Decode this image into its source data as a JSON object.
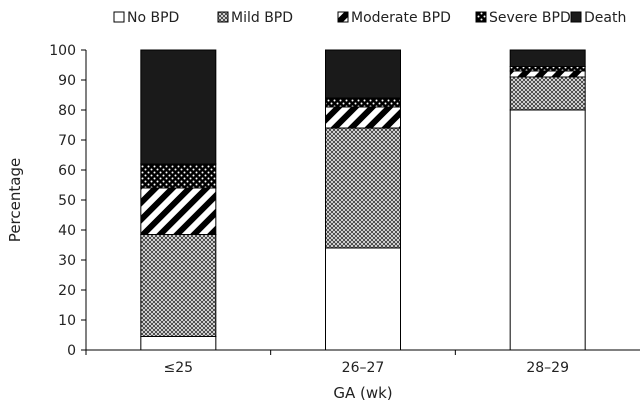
{
  "chart_data": {
    "type": "bar",
    "stacked": true,
    "title": "",
    "xlabel": "GA (wk)",
    "ylabel": "Percentage",
    "ylim": [
      0,
      100
    ],
    "yticks": [
      0,
      10,
      20,
      30,
      40,
      50,
      60,
      70,
      80,
      90,
      100
    ],
    "categories": [
      "≤25",
      "26–27",
      "28–29"
    ],
    "legend_position": "top",
    "grid": false,
    "series": [
      {
        "name": "No BPD",
        "pattern": "white",
        "values": [
          4.5,
          34,
          80
        ]
      },
      {
        "name": "Mild BPD",
        "pattern": "crosshatch-gray",
        "values": [
          34,
          40,
          11
        ]
      },
      {
        "name": "Moderate BPD",
        "pattern": "diagonal-stripes",
        "values": [
          15.5,
          7,
          2
        ]
      },
      {
        "name": "Severe BPD",
        "pattern": "dots-on-black",
        "values": [
          8,
          3,
          1.5
        ]
      },
      {
        "name": "Death",
        "pattern": "black",
        "values": [
          38,
          16,
          5.5
        ]
      }
    ]
  }
}
